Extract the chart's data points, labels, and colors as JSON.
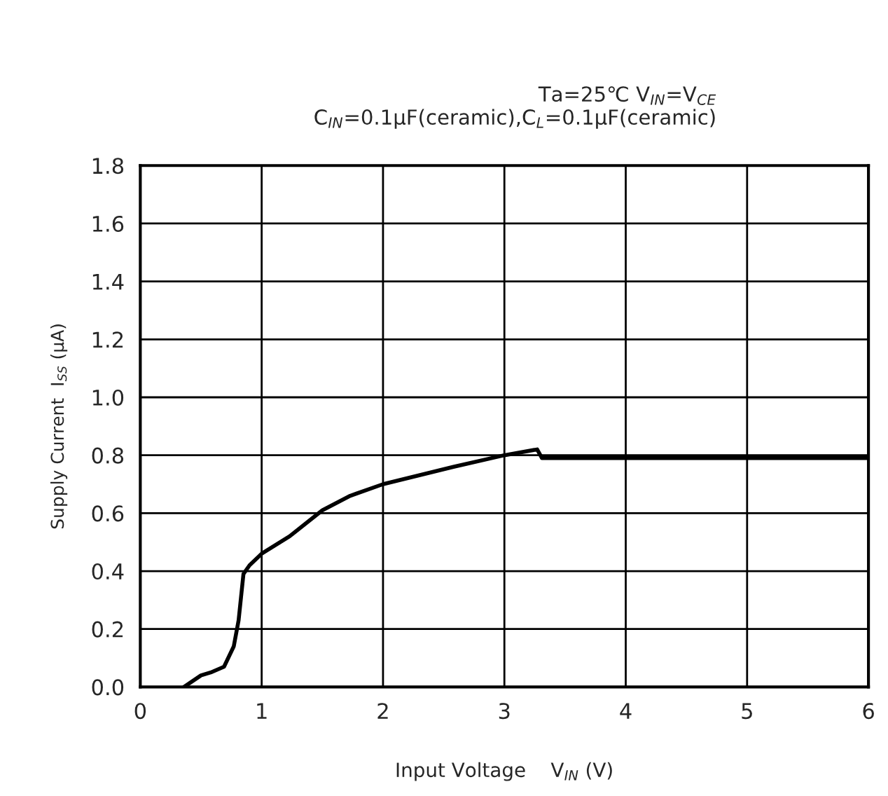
{
  "chart_data": {
    "type": "line",
    "subtitle": "Ta=25℃ V$_{IN}$=V$_{CE}$\nC$_{IN}$=0.1μF(ceramic),C$_{L}$=0.1μF(ceramic)",
    "xlabel": "Input Voltage    V$_{IN}$ (V)",
    "ylabel": "Supply Current  I$_{SS}$ (μA)",
    "series": [
      {
        "color": "#000000",
        "x": [
          0.36,
          0.5,
          0.58,
          0.69,
          0.77,
          0.81,
          0.85,
          0.9,
          1.0,
          1.23,
          1.5,
          1.73,
          2.0,
          2.58,
          3.0,
          3.27,
          3.31,
          6.0
        ],
        "values": [
          0.0,
          0.04,
          0.05,
          0.07,
          0.14,
          0.23,
          0.39,
          0.42,
          0.46,
          0.52,
          0.61,
          0.66,
          0.7,
          0.76,
          0.8,
          0.82,
          0.79,
          0.79
        ]
      }
    ],
    "xlim": [
      0,
      6
    ],
    "ylim": [
      0,
      1.8
    ],
    "xticks": [
      0,
      1,
      2,
      3,
      4,
      5,
      6
    ],
    "yticks": [
      {
        "value": 0,
        "label": "0.0"
      },
      {
        "value": 0.2,
        "label": "0.2"
      },
      {
        "value": 0.4,
        "label": "0.4"
      },
      {
        "value": 0.6,
        "label": "0.6"
      },
      {
        "value": 0.8,
        "label": "0.8"
      },
      {
        "value": 1.0,
        "label": "1.0"
      },
      {
        "value": 1.2,
        "label": "1.2"
      },
      {
        "value": 1.4,
        "label": "1.4"
      },
      {
        "value": 1.6,
        "label": "1.6"
      },
      {
        "value": 1.8,
        "label": "1.8"
      }
    ],
    "grid": true,
    "line_style": "solid"
  }
}
